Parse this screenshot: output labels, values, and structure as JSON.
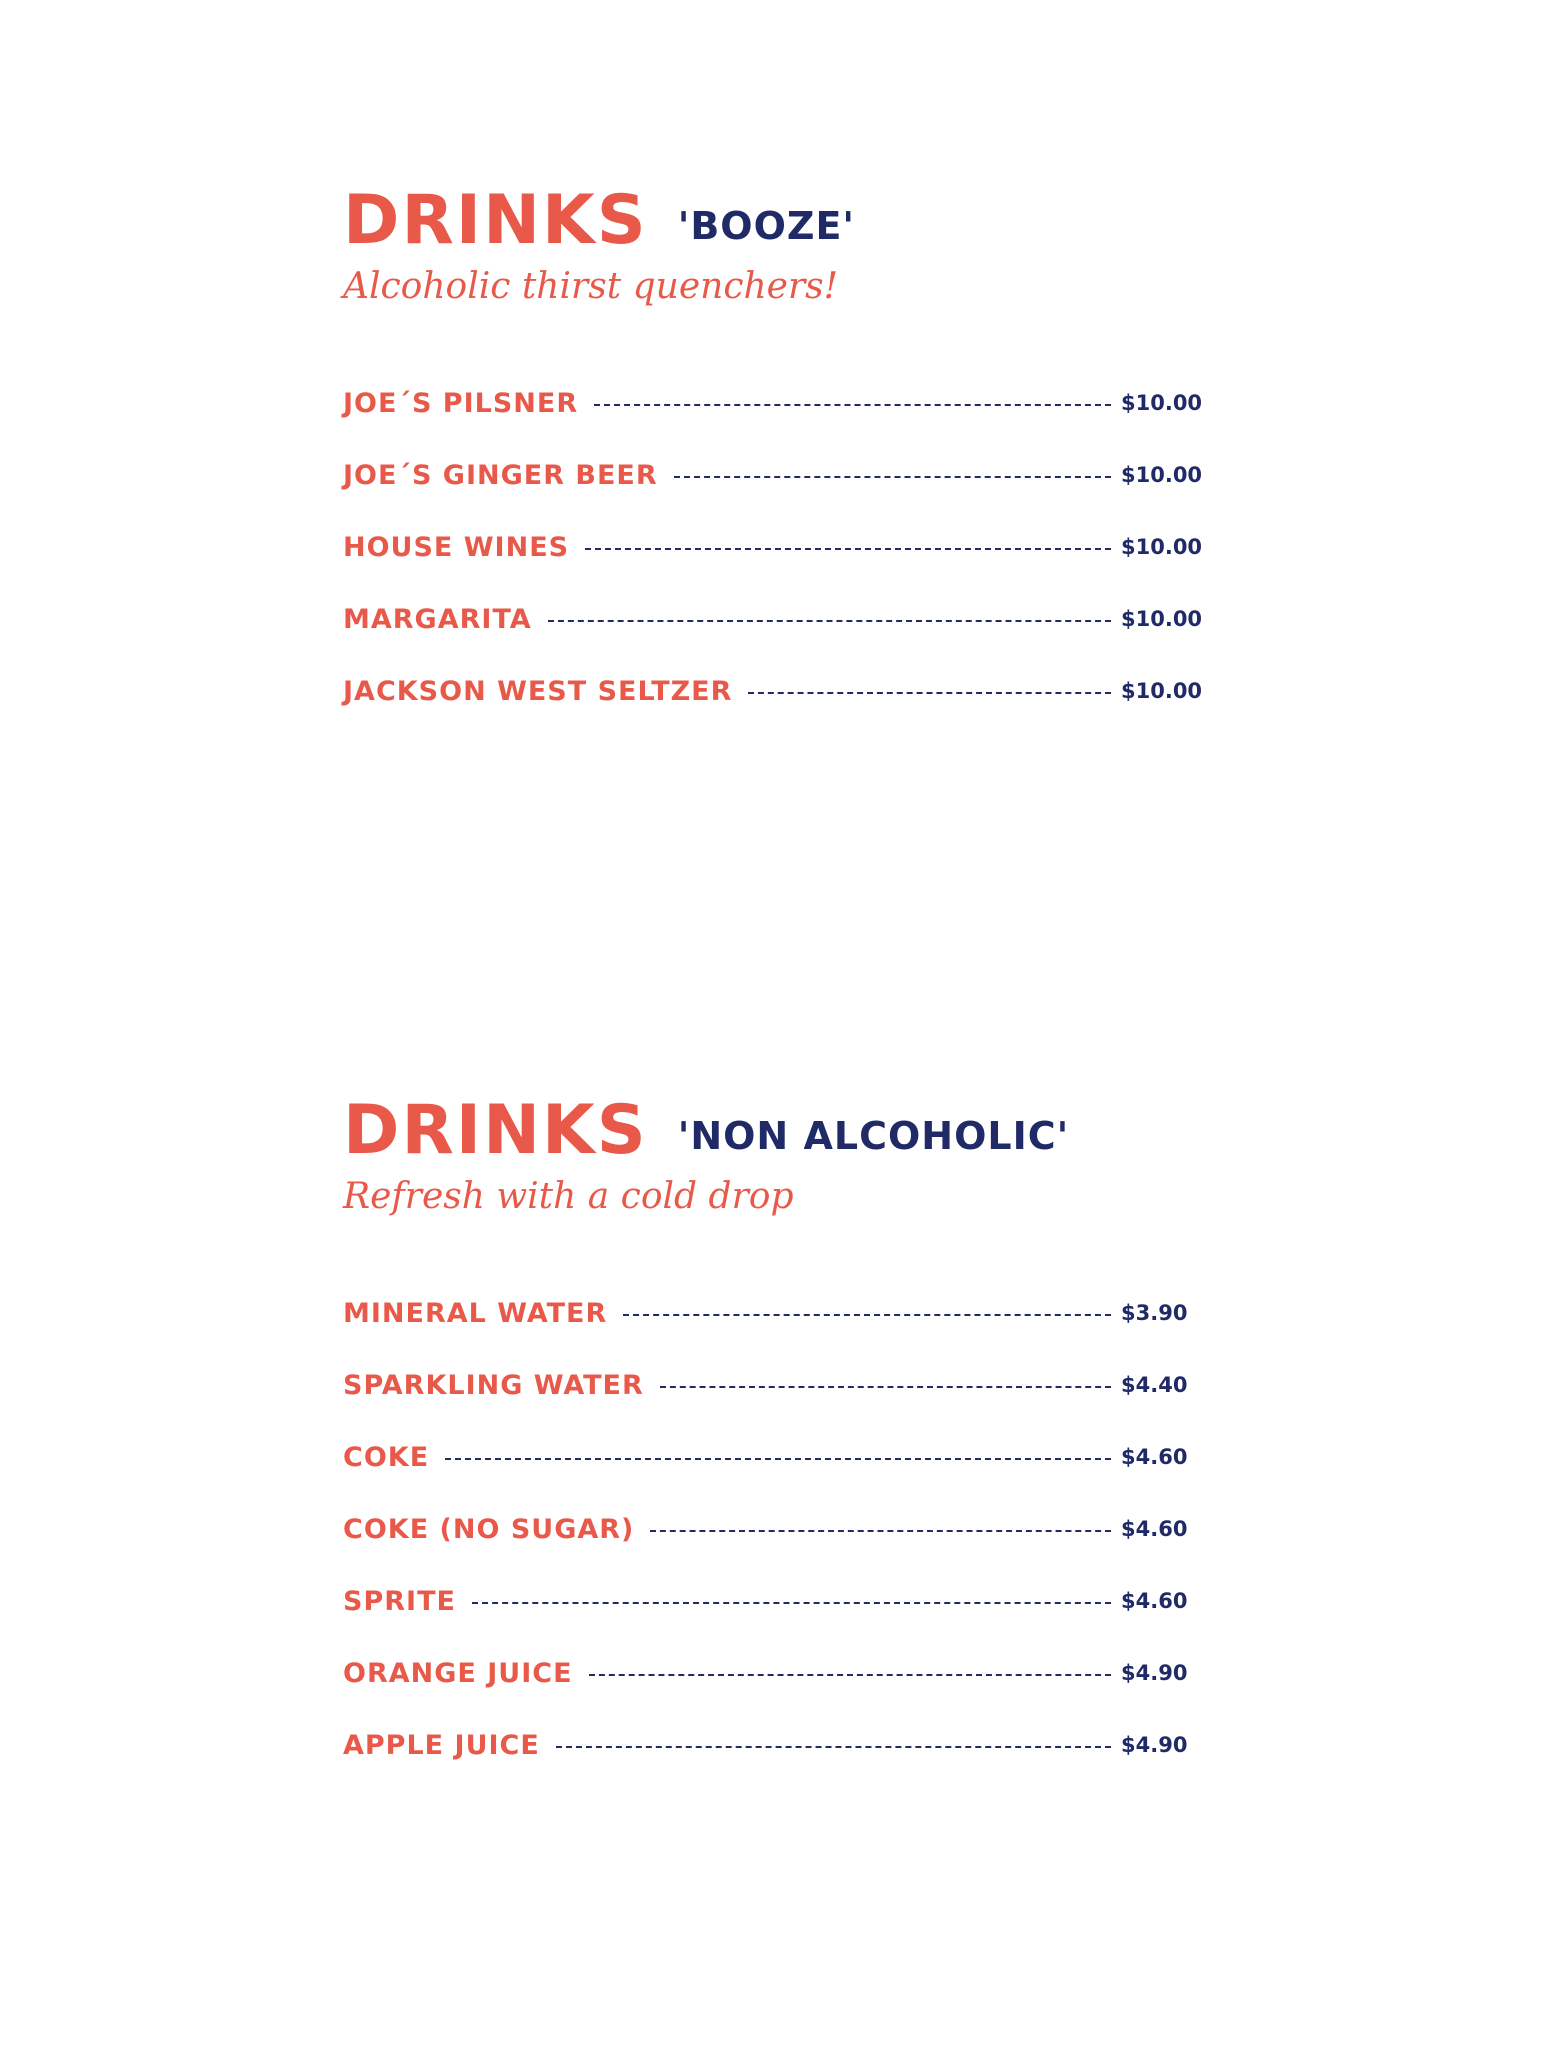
{
  "booze": {
    "title": "DRINKS",
    "subtitle": "'BOOZE'",
    "tagline": "Alcoholic thirst quenchers!",
    "items": [
      {
        "name": "JOE´S PILSNER",
        "price": "$10.00"
      },
      {
        "name": "JOE´S GINGER BEER",
        "price": "$10.00"
      },
      {
        "name": "HOUSE WINES",
        "price": "$10.00"
      },
      {
        "name": "MARGARITA",
        "price": "$10.00"
      },
      {
        "name": "JACKSON WEST SELTZER",
        "price": "$10.00"
      }
    ]
  },
  "nonalc": {
    "title": "DRINKS",
    "subtitle": "'NON ALCOHOLIC'",
    "tagline": "Refresh with a cold drop",
    "items": [
      {
        "name": "MINERAL WATER",
        "price": "$3.90"
      },
      {
        "name": "SPARKLING WATER",
        "price": "$4.40"
      },
      {
        "name": "COKE",
        "price": "$4.60"
      },
      {
        "name": "COKE (NO SUGAR)",
        "price": "$4.60"
      },
      {
        "name": "SPRITE",
        "price": "$4.60"
      },
      {
        "name": "ORANGE JUICE",
        "price": "$4.90"
      },
      {
        "name": "APPLE JUICE",
        "price": "$4.90"
      }
    ]
  },
  "colors": {
    "accent": "#e8594a",
    "navy": "#1f2a66"
  }
}
